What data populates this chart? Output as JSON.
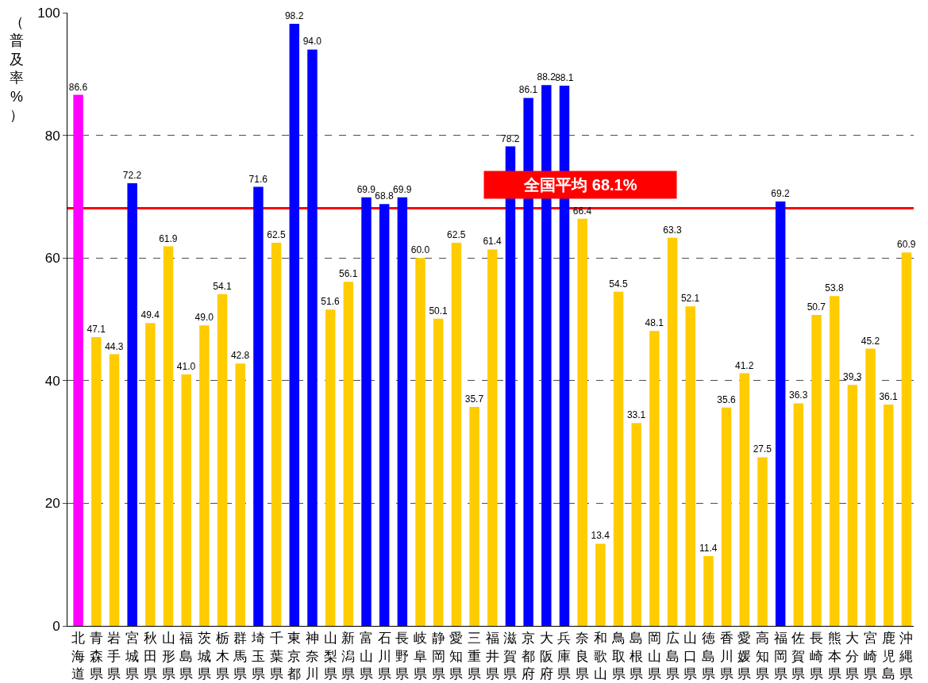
{
  "chart_data": {
    "type": "bar",
    "ylabel": "（普及率%）",
    "categories": [
      "北海道",
      "青森県",
      "岩手県",
      "宮城県",
      "秋田県",
      "山形県",
      "福島県",
      "茨城県",
      "栃木県",
      "群馬県",
      "埼玉県",
      "千葉県",
      "東京都",
      "神奈川",
      "山梨県",
      "新潟県",
      "富山県",
      "石川県",
      "長野県",
      "岐阜県",
      "静岡県",
      "愛知県",
      "三重県",
      "福井県",
      "滋賀県",
      "京都府",
      "大阪府",
      "兵庫県",
      "奈良県",
      "和歌山",
      "鳥取県",
      "島根県",
      "岡山県",
      "広島県",
      "山口県",
      "徳島県",
      "香川県",
      "愛媛県",
      "高知県",
      "福岡県",
      "佐賀県",
      "長崎県",
      "熊本県",
      "大分県",
      "宮崎県",
      "鹿児島",
      "沖縄県"
    ],
    "values": [
      86.6,
      47.1,
      44.3,
      72.2,
      49.4,
      61.9,
      41.0,
      49.0,
      54.1,
      42.8,
      71.6,
      62.5,
      98.2,
      94.0,
      51.6,
      56.1,
      69.9,
      68.8,
      69.9,
      60.0,
      50.1,
      62.5,
      35.7,
      61.4,
      78.2,
      86.1,
      88.2,
      88.1,
      66.4,
      13.4,
      54.5,
      33.1,
      48.1,
      63.3,
      52.1,
      11.4,
      35.6,
      41.2,
      27.5,
      69.2,
      36.3,
      50.7,
      53.8,
      39.3,
      45.2,
      36.1,
      60.9
    ],
    "value_labels": [
      "86.6",
      "47.1",
      "44.3",
      "72.2",
      "49.4",
      "61.9",
      "41.0",
      "49.0",
      "54.1",
      "42.8",
      "71.6",
      "62.5",
      "98.2",
      "94.0",
      "51.6",
      "56.1",
      "69.9",
      "68.8",
      "69.9",
      "60.0",
      "50.1",
      "62.5",
      "35.7",
      "61.4",
      "78.2",
      "86.1",
      "88.2",
      "88.1",
      "66.4",
      "13.4",
      "54.5",
      "33.1",
      "48.1",
      "63.3",
      "52.1",
      "11.4",
      "35.6",
      "41.2",
      "27.5",
      "69.2",
      "36.3",
      "50.7",
      "53.8",
      "39.3",
      "45.2",
      "36.1",
      "60.9"
    ],
    "colors": [
      "#ff00ff",
      "#ffcc00",
      "#ffcc00",
      "#0000ff",
      "#ffcc00",
      "#ffcc00",
      "#ffcc00",
      "#ffcc00",
      "#ffcc00",
      "#ffcc00",
      "#0000ff",
      "#ffcc00",
      "#0000ff",
      "#0000ff",
      "#ffcc00",
      "#ffcc00",
      "#0000ff",
      "#0000ff",
      "#0000ff",
      "#ffcc00",
      "#ffcc00",
      "#ffcc00",
      "#ffcc00",
      "#ffcc00",
      "#0000ff",
      "#0000ff",
      "#0000ff",
      "#0000ff",
      "#ffcc00",
      "#ffcc00",
      "#ffcc00",
      "#ffcc00",
      "#ffcc00",
      "#ffcc00",
      "#ffcc00",
      "#ffcc00",
      "#ffcc00",
      "#ffcc00",
      "#ffcc00",
      "#0000ff",
      "#ffcc00",
      "#ffcc00",
      "#ffcc00",
      "#ffcc00",
      "#ffcc00",
      "#ffcc00",
      "#ffcc00"
    ],
    "ylim": [
      0,
      100
    ],
    "yticks": [
      0,
      20,
      40,
      60,
      80,
      100
    ],
    "grid": "y",
    "line_style": "dashed",
    "ref_lines": [
      {
        "axis": "y",
        "value": 68.1,
        "label": "全国平均 68.1%",
        "color": "#ff0000"
      }
    ]
  }
}
